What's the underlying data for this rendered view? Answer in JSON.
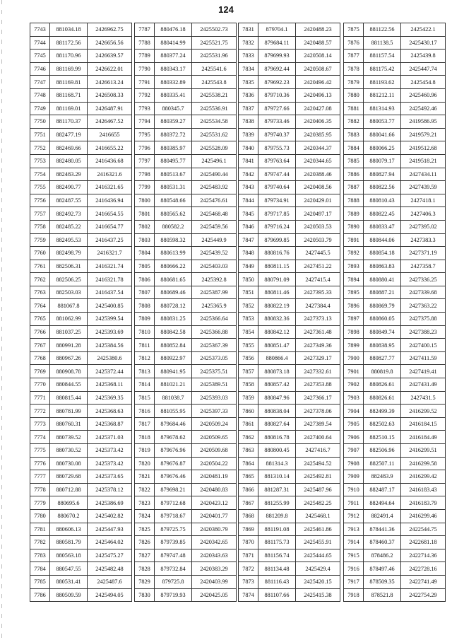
{
  "page_number": "124",
  "tables": [
    [
      [
        "7743",
        "881034.18",
        "2426962.75"
      ],
      [
        "7744",
        "881172.56",
        "2426656.56"
      ],
      [
        "7745",
        "881170.96",
        "2426639.57"
      ],
      [
        "7746",
        "881169.99",
        "2426622.01"
      ],
      [
        "7747",
        "881169.81",
        "2426613.24"
      ],
      [
        "7748",
        "881168.71",
        "2426508.33"
      ],
      [
        "7749",
        "881169.01",
        "2426487.91"
      ],
      [
        "7750",
        "881170.37",
        "2426467.52"
      ],
      [
        "7751",
        "882477.19",
        "2416655"
      ],
      [
        "7752",
        "882469.66",
        "2416655.22"
      ],
      [
        "7753",
        "882480.05",
        "2416436.68"
      ],
      [
        "7754",
        "882483.29",
        "2416321.6"
      ],
      [
        "7755",
        "882490.77",
        "2416321.65"
      ],
      [
        "7756",
        "882487.55",
        "2416436.94"
      ],
      [
        "7757",
        "882492.73",
        "2416654.55"
      ],
      [
        "7758",
        "882485.22",
        "2416654.77"
      ],
      [
        "7759",
        "882495.53",
        "2416437.25"
      ],
      [
        "7760",
        "882498.79",
        "2416321.7"
      ],
      [
        "7761",
        "882506.31",
        "2416321.74"
      ],
      [
        "7762",
        "882506.25",
        "2416321.78"
      ],
      [
        "7763",
        "882503.03",
        "2416437.54"
      ],
      [
        "7764",
        "881067.8",
        "2425400.85"
      ],
      [
        "7765",
        "881062.99",
        "2425399.54"
      ],
      [
        "7766",
        "881037.25",
        "2425393.69"
      ],
      [
        "7767",
        "880991.28",
        "2425384.56"
      ],
      [
        "7768",
        "880967.26",
        "2425380.6"
      ],
      [
        "7769",
        "880908.78",
        "2425372.44"
      ],
      [
        "7770",
        "880844.55",
        "2425368.11"
      ],
      [
        "7771",
        "880815.44",
        "2425369.35"
      ],
      [
        "7772",
        "880781.99",
        "2425368.63"
      ],
      [
        "7773",
        "880760.31",
        "2425368.87"
      ],
      [
        "7774",
        "880739.52",
        "2425371.03"
      ],
      [
        "7775",
        "880730.52",
        "2425373.42"
      ],
      [
        "7776",
        "880730.08",
        "2425373.42"
      ],
      [
        "7777",
        "880729.68",
        "2425373.65"
      ],
      [
        "7778",
        "880712.88",
        "2425378.12"
      ],
      [
        "7779",
        "880695.6",
        "2425386.69"
      ],
      [
        "7780",
        "880670.2",
        "2425402.82"
      ],
      [
        "7781",
        "880606.13",
        "2425447.93"
      ],
      [
        "7782",
        "880581.79",
        "2425464.02"
      ],
      [
        "7783",
        "880563.18",
        "2425475.27"
      ],
      [
        "7784",
        "880547.55",
        "2425482.48"
      ],
      [
        "7785",
        "880531.41",
        "2425487.6"
      ],
      [
        "7786",
        "880509.59",
        "2425494.05"
      ]
    ],
    [
      [
        "7787",
        "880476.18",
        "2425502.73"
      ],
      [
        "7788",
        "880414.99",
        "2425521.75"
      ],
      [
        "7789",
        "880377.24",
        "2425531.96"
      ],
      [
        "7790",
        "880343.17",
        "2425541.6"
      ],
      [
        "7791",
        "880332.89",
        "2425543.8"
      ],
      [
        "7792",
        "880335.41",
        "2425538.21"
      ],
      [
        "7793",
        "880345.7",
        "2425536.91"
      ],
      [
        "7794",
        "880359.27",
        "2425534.58"
      ],
      [
        "7795",
        "880372.72",
        "2425531.62"
      ],
      [
        "7796",
        "880385.97",
        "2425528.09"
      ],
      [
        "7797",
        "880495.77",
        "2425496.1"
      ],
      [
        "7798",
        "880513.67",
        "2425490.44"
      ],
      [
        "7799",
        "880531.31",
        "2425483.92"
      ],
      [
        "7800",
        "880548.66",
        "2425476.61"
      ],
      [
        "7801",
        "880565.62",
        "2425468.48"
      ],
      [
        "7802",
        "880582.2",
        "2425459.56"
      ],
      [
        "7803",
        "880598.32",
        "2425449.9"
      ],
      [
        "7804",
        "880613.99",
        "2425439.52"
      ],
      [
        "7805",
        "880666.22",
        "2425403.03"
      ],
      [
        "7806",
        "880681.65",
        "2425392.8"
      ],
      [
        "7807",
        "880689.46",
        "2425387.99"
      ],
      [
        "7808",
        "880728.12",
        "2425365.9"
      ],
      [
        "7809",
        "880831.25",
        "2425366.64"
      ],
      [
        "7810",
        "880842.58",
        "2425366.88"
      ],
      [
        "7811",
        "880852.84",
        "2425367.39"
      ],
      [
        "7812",
        "880922.97",
        "2425373.05"
      ],
      [
        "7813",
        "880941.95",
        "2425375.51"
      ],
      [
        "7814",
        "881021.21",
        "2425389.51"
      ],
      [
        "7815",
        "881038.7",
        "2425393.03"
      ],
      [
        "7816",
        "881055.95",
        "2425397.33"
      ],
      [
        "7817",
        "879684.46",
        "2420509.24"
      ],
      [
        "7818",
        "879678.62",
        "2420509.65"
      ],
      [
        "7819",
        "879676.96",
        "2420509.68"
      ],
      [
        "7820",
        "879676.87",
        "2420504.22"
      ],
      [
        "7821",
        "879676.46",
        "2420481.19"
      ],
      [
        "7822",
        "879698.21",
        "2420480.83"
      ],
      [
        "7823",
        "879712.68",
        "2420423.12"
      ],
      [
        "7824",
        "879718.67",
        "2420401.77"
      ],
      [
        "7825",
        "879725.75",
        "2420380.79"
      ],
      [
        "7826",
        "879739.85",
        "2420342.65"
      ],
      [
        "7827",
        "879747.48",
        "2420343.63"
      ],
      [
        "7828",
        "879732.84",
        "2420383.29"
      ],
      [
        "7829",
        "879725.8",
        "2420403.99"
      ],
      [
        "7830",
        "879719.93",
        "2420425.05"
      ]
    ],
    [
      [
        "7831",
        "879704.1",
        "2420488.23"
      ],
      [
        "7832",
        "879684.11",
        "2420488.57"
      ],
      [
        "7833",
        "879699.93",
        "2420508.14"
      ],
      [
        "7834",
        "879692.44",
        "2420508.67"
      ],
      [
        "7835",
        "879692.23",
        "2420496.42"
      ],
      [
        "7836",
        "879710.36",
        "2420496.13"
      ],
      [
        "7837",
        "879727.66",
        "2420427.08"
      ],
      [
        "7838",
        "879733.46",
        "2420406.35"
      ],
      [
        "7839",
        "879740.37",
        "2420385.95"
      ],
      [
        "7840",
        "879755.73",
        "2420344.37"
      ],
      [
        "7841",
        "879763.64",
        "2420344.65"
      ],
      [
        "7842",
        "879747.44",
        "2420388.46"
      ],
      [
        "7843",
        "879740.64",
        "2420408.56"
      ],
      [
        "7844",
        "879734.91",
        "2420429.01"
      ],
      [
        "7845",
        "879717.85",
        "2420497.17"
      ],
      [
        "7846",
        "879716.24",
        "2420503.53"
      ],
      [
        "7847",
        "879699.85",
        "2420503.79"
      ],
      [
        "7848",
        "880816.76",
        "2427445.5"
      ],
      [
        "7849",
        "880811.15",
        "2427451.22"
      ],
      [
        "7850",
        "880791.09",
        "2427415.4"
      ],
      [
        "7851",
        "880811.46",
        "2427395.33"
      ],
      [
        "7852",
        "880822.19",
        "2427384.4"
      ],
      [
        "7853",
        "880832.36",
        "2427373.13"
      ],
      [
        "7854",
        "880842.12",
        "2427361.48"
      ],
      [
        "7855",
        "880851.47",
        "2427349.36"
      ],
      [
        "7856",
        "880866.4",
        "2427329.17"
      ],
      [
        "7857",
        "880873.18",
        "2427332.61"
      ],
      [
        "7858",
        "880857.42",
        "2427353.88"
      ],
      [
        "7859",
        "880847.96",
        "2427366.17"
      ],
      [
        "7860",
        "880838.04",
        "2427378.06"
      ],
      [
        "7861",
        "880827.64",
        "2427389.54"
      ],
      [
        "7862",
        "880816.78",
        "2427400.64"
      ],
      [
        "7863",
        "880800.45",
        "2427416.7"
      ],
      [
        "7864",
        "881314.3",
        "2425494.52"
      ],
      [
        "7865",
        "881310.14",
        "2425492.81"
      ],
      [
        "7866",
        "881287.31",
        "2425487.96"
      ],
      [
        "7867",
        "881255.99",
        "2425482.25"
      ],
      [
        "7868",
        "881209.8",
        "2425468.1"
      ],
      [
        "7869",
        "881191.08",
        "2425461.86"
      ],
      [
        "7870",
        "881175.73",
        "2425455.91"
      ],
      [
        "7871",
        "881156.74",
        "2425444.65"
      ],
      [
        "7872",
        "881134.48",
        "2425429.4"
      ],
      [
        "7873",
        "881116.43",
        "2425420.15"
      ],
      [
        "7874",
        "881107.66",
        "2425415.38"
      ]
    ],
    [
      [
        "7875",
        "881122.56",
        "2425422.1"
      ],
      [
        "7876",
        "881138.5",
        "2425430.17"
      ],
      [
        "7877",
        "881157.54",
        "2425439.8"
      ],
      [
        "7878",
        "881175.42",
        "2425447.74"
      ],
      [
        "7879",
        "881193.62",
        "2425454.8"
      ],
      [
        "7880",
        "881212.11",
        "2425460.96"
      ],
      [
        "7881",
        "881314.93",
        "2425492.46"
      ],
      [
        "7882",
        "880053.77",
        "2419586.95"
      ],
      [
        "7883",
        "880041.66",
        "2419579.21"
      ],
      [
        "7884",
        "880066.25",
        "2419512.68"
      ],
      [
        "7885",
        "880079.17",
        "2419518.21"
      ],
      [
        "7886",
        "880827.94",
        "2427434.11"
      ],
      [
        "7887",
        "880822.56",
        "2427439.59"
      ],
      [
        "7888",
        "880810.43",
        "2427418.1"
      ],
      [
        "7889",
        "880822.45",
        "2427406.3"
      ],
      [
        "7890",
        "880833.47",
        "2427395.02"
      ],
      [
        "7891",
        "880844.06",
        "2427383.3"
      ],
      [
        "7892",
        "880854.18",
        "2427371.19"
      ],
      [
        "7893",
        "880863.83",
        "2427358.7"
      ],
      [
        "7894",
        "880880.41",
        "2427336.25"
      ],
      [
        "7895",
        "880887.21",
        "2427339.68"
      ],
      [
        "7896",
        "880869.79",
        "2427363.22"
      ],
      [
        "7897",
        "880860.05",
        "2427375.88"
      ],
      [
        "7898",
        "880849.74",
        "2427388.23"
      ],
      [
        "7899",
        "880838.95",
        "2427400.15"
      ],
      [
        "7900",
        "880827.77",
        "2427411.59"
      ],
      [
        "7901",
        "880819.8",
        "2427419.41"
      ],
      [
        "7902",
        "880826.61",
        "2427431.49"
      ],
      [
        "7903",
        "880826.61",
        "2427431.5"
      ],
      [
        "7904",
        "882499.39",
        "2416299.52"
      ],
      [
        "7905",
        "882502.63",
        "2416184.15"
      ],
      [
        "7906",
        "882510.15",
        "2416184.49"
      ],
      [
        "7907",
        "882506.96",
        "2416299.51"
      ],
      [
        "7908",
        "882507.11",
        "2416299.58"
      ],
      [
        "7909",
        "882483.9",
        "2416299.42"
      ],
      [
        "7910",
        "882487.17",
        "2416183.43"
      ],
      [
        "7911",
        "882494.64",
        "2416183.79"
      ],
      [
        "7912",
        "882491.4",
        "2416299.46"
      ],
      [
        "7913",
        "878441.36",
        "2422544.75"
      ],
      [
        "7914",
        "878460.37",
        "2422681.18"
      ],
      [
        "7915",
        "878486.2",
        "2422714.36"
      ],
      [
        "7916",
        "878497.46",
        "2422728.16"
      ],
      [
        "7917",
        "878509.35",
        "2422741.49"
      ],
      [
        "7918",
        "878521.8",
        "2422754.29"
      ]
    ]
  ]
}
